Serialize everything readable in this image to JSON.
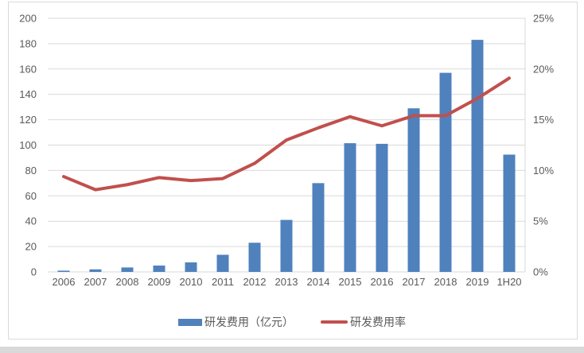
{
  "colors": {
    "bar": "#4f81bd",
    "line": "#c0504d",
    "grid": "#d9d9d9",
    "axis_text": "#595959",
    "frame_border": "#d9d9d9",
    "bottom_divider": "#d9d9d9"
  },
  "chart_data": {
    "type": "combo",
    "categories": [
      "2006",
      "2007",
      "2008",
      "2009",
      "2010",
      "2011",
      "2012",
      "2013",
      "2014",
      "2015",
      "2016",
      "2017",
      "2018",
      "2019",
      "1H20"
    ],
    "series": [
      {
        "name": "研发费用（亿元）",
        "type": "bar",
        "axis": "left",
        "color": "#4f81bd",
        "values": [
          1,
          2,
          3.5,
          5,
          7.5,
          13.5,
          23,
          41,
          70,
          101.5,
          101,
          129,
          157,
          183,
          92.5
        ]
      },
      {
        "name": "研发费用率",
        "type": "line",
        "axis": "right",
        "color": "#c0504d",
        "values": [
          9.4,
          8.1,
          8.6,
          9.3,
          9.0,
          9.2,
          10.7,
          13.0,
          14.2,
          15.3,
          14.4,
          15.4,
          15.4,
          17.1,
          19.1
        ]
      }
    ],
    "left_axis": {
      "min": 0,
      "max": 200,
      "step": 20,
      "tick_labels": [
        "0",
        "20",
        "40",
        "60",
        "80",
        "100",
        "120",
        "140",
        "160",
        "180",
        "200"
      ]
    },
    "right_axis": {
      "min": 0,
      "max": 25,
      "step": 5,
      "tick_labels": [
        "0%",
        "5%",
        "10%",
        "15%",
        "20%",
        "25%"
      ]
    },
    "grid": true,
    "legend_position": "bottom",
    "title": "",
    "xlabel": "",
    "ylabel": ""
  }
}
